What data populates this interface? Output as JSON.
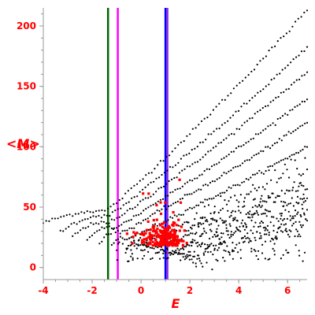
{
  "chart_data": {
    "type": "scatter",
    "xlabel": "E",
    "ylabel": "<M>",
    "xlim": [
      -4,
      6.8
    ],
    "ylim": [
      -10,
      215
    ],
    "x_ticks": [
      "-4",
      "-2",
      "0",
      "2",
      "4",
      "6"
    ],
    "x_tick_values": [
      -4,
      -2,
      0,
      2,
      4,
      6
    ],
    "y_ticks": [
      "0",
      "50",
      "100",
      "150",
      "200"
    ],
    "y_tick_values": [
      0,
      50,
      100,
      150,
      200
    ],
    "colors": {
      "points": "#000000",
      "highlight": "#ff0000",
      "axis": "#9a9a9a",
      "text": "#ff0000"
    },
    "vertical_lines": [
      {
        "x": -1.35,
        "color": "#006400"
      },
      {
        "x": -0.95,
        "color": "#ff00ff"
      },
      {
        "x": 1.0,
        "color": "#0000ff"
      },
      {
        "x": 1.08,
        "color": "#8a2be2"
      }
    ],
    "curves": [
      {
        "x0": -4,
        "y0": 37,
        "xp": -1.7,
        "yp": 47,
        "x1": 6.8,
        "y1": 213
      },
      {
        "x0": -3.3,
        "y0": 30,
        "xp": -1.6,
        "yp": 43,
        "x1": 6.8,
        "y1": 182
      },
      {
        "x0": -2.8,
        "y0": 26,
        "xp": -1.5,
        "yp": 38,
        "x1": 6.8,
        "y1": 162
      },
      {
        "x0": -2.2,
        "y0": 22,
        "xp": -1.3,
        "yp": 34,
        "x1": 6.8,
        "y1": 140
      },
      {
        "x0": -1.7,
        "y0": 20,
        "xp": -1.1,
        "yp": 30,
        "x1": 6.8,
        "y1": 120
      },
      {
        "x0": -1.2,
        "y0": 18,
        "xp": -0.8,
        "yp": 25,
        "x1": 6.8,
        "y1": 100
      },
      {
        "x0": -0.6,
        "y0": 16,
        "xp": -0.3,
        "yp": 20,
        "x1": 6.8,
        "y1": 85
      },
      {
        "x0": 0.0,
        "y0": 14,
        "xp": 0.3,
        "yp": 17,
        "x1": 6.8,
        "y1": 70
      },
      {
        "x0": 0.6,
        "y0": 12,
        "xp": 0.9,
        "yp": 14,
        "x1": 6.8,
        "y1": 55
      },
      {
        "x0": 1.2,
        "y0": 10,
        "xp": 1.5,
        "yp": 12,
        "x1": 6.8,
        "y1": 45
      },
      {
        "x0": 1.8,
        "y0": 8,
        "xp": 2.1,
        "yp": 10,
        "x1": 6.8,
        "y1": 38
      }
    ],
    "highlight_cluster": {
      "x": 0.95,
      "y": 18,
      "sx": 0.45,
      "sy": 9,
      "count": 220
    }
  }
}
